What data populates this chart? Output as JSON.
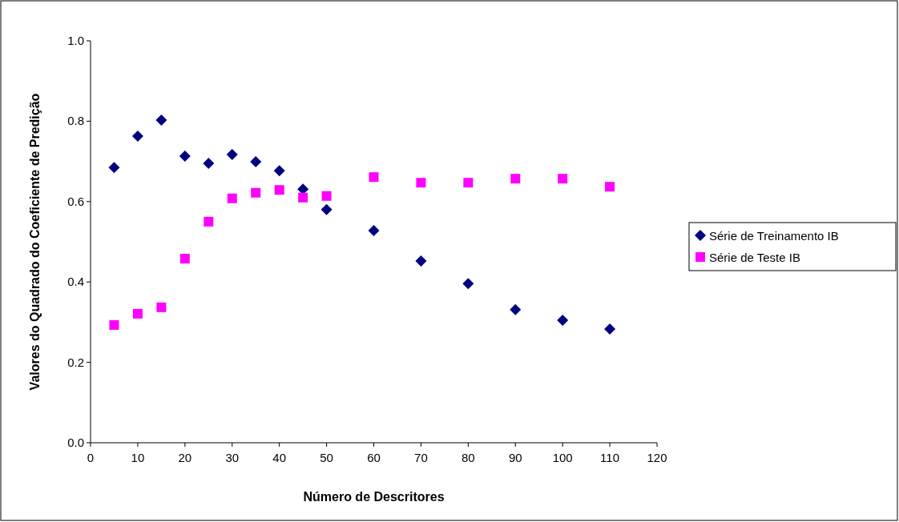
{
  "chart_data": {
    "type": "scatter",
    "xlabel": "Número de Descritores",
    "ylabel": "Valores do Quadrado do Coeficiente de Predição",
    "xlim": [
      0,
      120
    ],
    "xticks": [
      0,
      10,
      20,
      30,
      40,
      50,
      60,
      70,
      80,
      90,
      100,
      110,
      120
    ],
    "ylim": [
      0,
      1
    ],
    "yticks": [
      {
        "value": 0,
        "label": "0.0"
      },
      0.2,
      0.4,
      0.6,
      0.8,
      {
        "value": 1,
        "label": "1.0"
      }
    ],
    "grid": false,
    "legend": "right",
    "x": [
      5,
      10,
      15,
      20,
      25,
      30,
      35,
      40,
      45,
      50,
      60,
      70,
      80,
      90,
      100,
      110
    ],
    "series": [
      {
        "name": "Série de Treinamento IB",
        "color": "#000080",
        "marker": "diamond",
        "values": [
          0.685,
          0.763,
          0.803,
          0.713,
          0.695,
          0.717,
          0.699,
          0.677,
          0.631,
          0.58,
          0.528,
          0.452,
          0.396,
          0.331,
          0.305,
          0.283
        ]
      },
      {
        "name": "Série de Teste IB",
        "color": "#ff00ff",
        "marker": "square",
        "values": [
          0.293,
          0.321,
          0.337,
          0.458,
          0.55,
          0.608,
          0.622,
          0.629,
          0.61,
          0.614,
          0.661,
          0.647,
          0.647,
          0.657,
          0.657,
          0.637
        ]
      }
    ]
  }
}
